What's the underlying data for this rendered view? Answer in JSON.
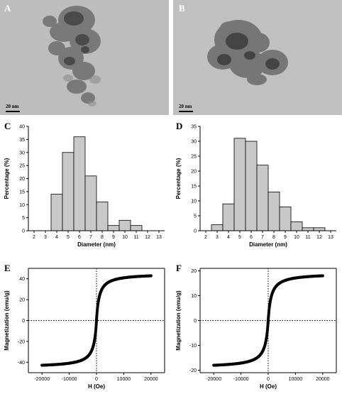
{
  "panels": {
    "A": {
      "letter": "A",
      "scale_label": "20 nm"
    },
    "B": {
      "letter": "B",
      "scale_label": "20 nm"
    },
    "C": {
      "letter": "C"
    },
    "D": {
      "letter": "D"
    },
    "E": {
      "letter": "E"
    },
    "F": {
      "letter": "F"
    }
  },
  "colors": {
    "bar_fill": "#c8c8c8",
    "bar_stroke": "#000000",
    "loop_marker": "#000000",
    "tem_bg": "#bdbdbd"
  },
  "chart_data": [
    {
      "id": "C",
      "type": "bar",
      "xlabel": "Diameter (nm)",
      "ylabel": "Percentage (%)",
      "xlim": [
        1.5,
        13.5
      ],
      "ylim": [
        0,
        40
      ],
      "xticks": [
        2,
        3,
        4,
        5,
        6,
        7,
        8,
        9,
        10,
        11,
        12,
        13
      ],
      "yticks": [
        0,
        5,
        10,
        15,
        20,
        25,
        30,
        35,
        40
      ],
      "bin_width": 1,
      "bins": [
        {
          "center": 4,
          "value": 14
        },
        {
          "center": 5,
          "value": 30
        },
        {
          "center": 6,
          "value": 36
        },
        {
          "center": 7,
          "value": 21
        },
        {
          "center": 8,
          "value": 11
        },
        {
          "center": 9,
          "value": 2
        },
        {
          "center": 10,
          "value": 4
        },
        {
          "center": 11,
          "value": 2
        }
      ]
    },
    {
      "id": "D",
      "type": "bar",
      "xlabel": "Diameter (nm)",
      "ylabel": "Percentage (%)",
      "xlim": [
        1.5,
        13.5
      ],
      "ylim": [
        0,
        35
      ],
      "xticks": [
        2,
        3,
        4,
        5,
        6,
        7,
        8,
        9,
        10,
        11,
        12,
        13
      ],
      "yticks": [
        0,
        5,
        10,
        15,
        20,
        25,
        30,
        35
      ],
      "bin_width": 1,
      "bins": [
        {
          "center": 3,
          "value": 2
        },
        {
          "center": 4,
          "value": 9
        },
        {
          "center": 5,
          "value": 31
        },
        {
          "center": 6,
          "value": 30
        },
        {
          "center": 7,
          "value": 22
        },
        {
          "center": 8,
          "value": 13
        },
        {
          "center": 9,
          "value": 8
        },
        {
          "center": 10,
          "value": 3
        },
        {
          "center": 11,
          "value": 1
        },
        {
          "center": 12,
          "value": 1
        }
      ]
    },
    {
      "id": "E",
      "type": "scatter",
      "xlabel": "H (Oe)",
      "ylabel": "Magnetization (emu/g)",
      "xlim": [
        -25000,
        25000
      ],
      "ylim": [
        -50,
        50
      ],
      "xticks": [
        -20000,
        -10000,
        0,
        10000,
        20000
      ],
      "yticks": [
        -40,
        -20,
        0,
        20,
        40
      ],
      "x_range": [
        -20000,
        20000
      ],
      "saturation": 45,
      "shape_h": 1000,
      "dotted_axes": true
    },
    {
      "id": "F",
      "type": "scatter",
      "xlabel": "H (Oe)",
      "ylabel": "Magnetization (emu/g)",
      "xlim": [
        -25000,
        25000
      ],
      "ylim": [
        -21,
        21
      ],
      "xticks": [
        -20000,
        -10000,
        0,
        10000,
        20000
      ],
      "yticks": [
        -20,
        -10,
        0,
        10,
        20
      ],
      "x_range": [
        -20000,
        20000
      ],
      "saturation": 19,
      "shape_h": 1100,
      "dotted_axes": true
    }
  ]
}
